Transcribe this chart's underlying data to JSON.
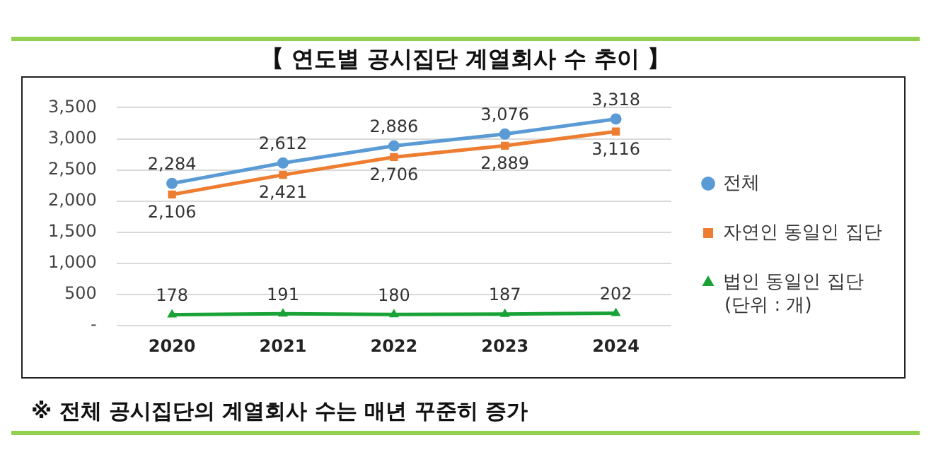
{
  "chart_data": {
    "type": "line",
    "title": "【 연도별 공시집단 계열회사 수 추이 】",
    "categories": [
      "2020",
      "2021",
      "2022",
      "2023",
      "2024"
    ],
    "series": [
      {
        "name": "전체",
        "color": "#5b9bd5",
        "values": [
          2284,
          2612,
          2886,
          3076,
          3318
        ],
        "value_labels": [
          "2,284",
          "2,612",
          "2,886",
          "3,076",
          "3,318"
        ],
        "marker": "circle"
      },
      {
        "name": "자연인 동일인 집단",
        "color": "#ed7d31",
        "values": [
          2106,
          2421,
          2706,
          2889,
          3116
        ],
        "value_labels": [
          "2,106",
          "2,421",
          "2,706",
          "2,889",
          "3,116"
        ],
        "marker": "square"
      },
      {
        "name": "법인 동일인 집단",
        "color": "#19a337",
        "values": [
          178,
          191,
          180,
          187,
          202
        ],
        "value_labels": [
          "178",
          "191",
          "180",
          "187",
          "202"
        ],
        "marker": "triangle"
      }
    ],
    "ylim": [
      0,
      3500
    ],
    "yticks": [
      {
        "value": 0,
        "label": "-"
      },
      {
        "value": 500,
        "label": "500"
      },
      {
        "value": 1000,
        "label": "1,000"
      },
      {
        "value": 1500,
        "label": "1,500"
      },
      {
        "value": 2000,
        "label": "2,000"
      },
      {
        "value": 2500,
        "label": "2,500"
      },
      {
        "value": 3000,
        "label": "3,000"
      },
      {
        "value": 3500,
        "label": "3,500"
      }
    ],
    "grid": "y",
    "legend": "right",
    "annotations": [
      "(단위 : 개)",
      "※ 전체 공시집단의 계열회사 수는 매년 꾸준히 증가"
    ]
  }
}
